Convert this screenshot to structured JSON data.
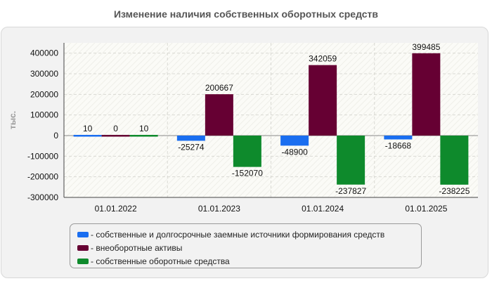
{
  "chart_data": {
    "type": "bar",
    "title": "Изменение наличия собственных оборотных средств",
    "ylabel": "тыс.",
    "xlabel": "",
    "categories": [
      "01.01.2022",
      "01.01.2023",
      "01.01.2024",
      "01.01.2025"
    ],
    "ylim": [
      -300000,
      450000
    ],
    "yticks": [
      -300000,
      -200000,
      -100000,
      0,
      100000,
      200000,
      300000,
      400000
    ],
    "grid": true,
    "legend_position": "bottom",
    "series": [
      {
        "name": "- собственные и долгосрочные заемные источники формирования средств",
        "color": "#1a6ef0",
        "values": [
          10,
          -25274,
          -48900,
          -18668
        ]
      },
      {
        "name": "- внеоборотные активы",
        "color": "#660033",
        "values": [
          0,
          200667,
          342059,
          399485
        ]
      },
      {
        "name": "- собственные оборотные средства",
        "color": "#0e8a2c",
        "values": [
          10,
          -152070,
          -237827,
          -238225
        ]
      }
    ]
  }
}
